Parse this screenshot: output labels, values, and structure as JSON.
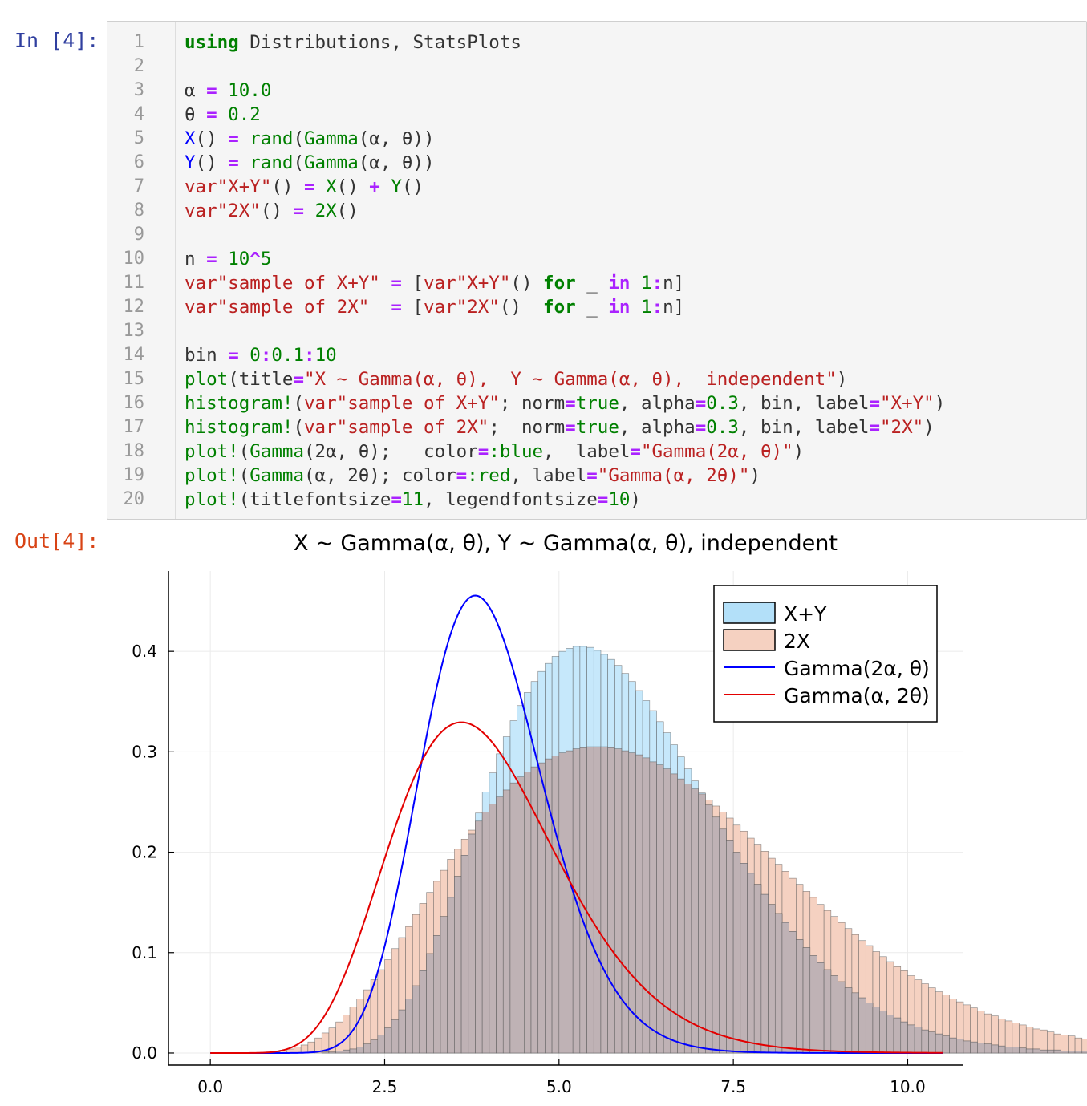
{
  "notebook": {
    "in_prompt": "In [4]:",
    "out_prompt": "Out[4]:"
  },
  "code_cell": {
    "line_numbers": [
      "1",
      "2",
      "3",
      "4",
      "5",
      "6",
      "7",
      "8",
      "9",
      "10",
      "11",
      "12",
      "13",
      "14",
      "15",
      "16",
      "17",
      "18",
      "19",
      "20"
    ],
    "lines": [
      [
        {
          "t": "using",
          "c": "kw"
        },
        {
          "t": " Distributions, StatsPlots",
          "c": ""
        }
      ],
      [],
      [
        {
          "t": "α ",
          "c": ""
        },
        {
          "t": "=",
          "c": "op"
        },
        {
          "t": " 10.0",
          "c": "num"
        }
      ],
      [
        {
          "t": "θ ",
          "c": ""
        },
        {
          "t": "=",
          "c": "op"
        },
        {
          "t": " 0.2",
          "c": "num"
        }
      ],
      [
        {
          "t": "X",
          "c": "blue"
        },
        {
          "t": "() ",
          "c": ""
        },
        {
          "t": "=",
          "c": "op"
        },
        {
          "t": " ",
          "c": ""
        },
        {
          "t": "rand",
          "c": "fn"
        },
        {
          "t": "(",
          "c": ""
        },
        {
          "t": "Gamma",
          "c": "fn"
        },
        {
          "t": "(α, θ))",
          "c": ""
        }
      ],
      [
        {
          "t": "Y",
          "c": "blue"
        },
        {
          "t": "() ",
          "c": ""
        },
        {
          "t": "=",
          "c": "op"
        },
        {
          "t": " ",
          "c": ""
        },
        {
          "t": "rand",
          "c": "fn"
        },
        {
          "t": "(",
          "c": ""
        },
        {
          "t": "Gamma",
          "c": "fn"
        },
        {
          "t": "(α, θ))",
          "c": ""
        }
      ],
      [
        {
          "t": "var\"X+Y\"",
          "c": "str"
        },
        {
          "t": "() ",
          "c": ""
        },
        {
          "t": "=",
          "c": "op"
        },
        {
          "t": " ",
          "c": ""
        },
        {
          "t": "X",
          "c": "fn"
        },
        {
          "t": "() ",
          "c": ""
        },
        {
          "t": "+",
          "c": "op"
        },
        {
          "t": " ",
          "c": ""
        },
        {
          "t": "Y",
          "c": "fn"
        },
        {
          "t": "()",
          "c": ""
        }
      ],
      [
        {
          "t": "var\"2X\"",
          "c": "str"
        },
        {
          "t": "() ",
          "c": ""
        },
        {
          "t": "=",
          "c": "op"
        },
        {
          "t": " ",
          "c": ""
        },
        {
          "t": "2X",
          "c": "num"
        },
        {
          "t": "()",
          "c": ""
        }
      ],
      [],
      [
        {
          "t": "n ",
          "c": ""
        },
        {
          "t": "=",
          "c": "op"
        },
        {
          "t": " ",
          "c": ""
        },
        {
          "t": "10",
          "c": "num"
        },
        {
          "t": "^",
          "c": "op"
        },
        {
          "t": "5",
          "c": "num"
        }
      ],
      [
        {
          "t": "var\"sample of X+Y\"",
          "c": "str"
        },
        {
          "t": " ",
          "c": ""
        },
        {
          "t": "=",
          "c": "op"
        },
        {
          "t": " [",
          "c": ""
        },
        {
          "t": "var\"X+Y\"",
          "c": "str"
        },
        {
          "t": "() ",
          "c": ""
        },
        {
          "t": "for",
          "c": "kw"
        },
        {
          "t": " _ ",
          "c": ""
        },
        {
          "t": "in",
          "c": "op"
        },
        {
          "t": " ",
          "c": ""
        },
        {
          "t": "1",
          "c": "num"
        },
        {
          "t": ":",
          "c": "op"
        },
        {
          "t": "n]",
          "c": ""
        }
      ],
      [
        {
          "t": "var\"sample of 2X\"",
          "c": "str"
        },
        {
          "t": "  ",
          "c": ""
        },
        {
          "t": "=",
          "c": "op"
        },
        {
          "t": " [",
          "c": ""
        },
        {
          "t": "var\"2X\"",
          "c": "str"
        },
        {
          "t": "()  ",
          "c": ""
        },
        {
          "t": "for",
          "c": "kw"
        },
        {
          "t": " _ ",
          "c": ""
        },
        {
          "t": "in",
          "c": "op"
        },
        {
          "t": " ",
          "c": ""
        },
        {
          "t": "1",
          "c": "num"
        },
        {
          "t": ":",
          "c": "op"
        },
        {
          "t": "n]",
          "c": ""
        }
      ],
      [],
      [
        {
          "t": "bin ",
          "c": ""
        },
        {
          "t": "=",
          "c": "op"
        },
        {
          "t": " ",
          "c": ""
        },
        {
          "t": "0",
          "c": "num"
        },
        {
          "t": ":",
          "c": "op"
        },
        {
          "t": "0.1",
          "c": "num"
        },
        {
          "t": ":",
          "c": "op"
        },
        {
          "t": "10",
          "c": "num"
        }
      ],
      [
        {
          "t": "plot",
          "c": "fn"
        },
        {
          "t": "(title",
          "c": ""
        },
        {
          "t": "=",
          "c": "op"
        },
        {
          "t": "\"X ~ Gamma(α, θ),  Y ~ Gamma(α, θ),  independent\"",
          "c": "str"
        },
        {
          "t": ")",
          "c": ""
        }
      ],
      [
        {
          "t": "histogram!",
          "c": "fn"
        },
        {
          "t": "(",
          "c": ""
        },
        {
          "t": "var\"sample of X+Y\"",
          "c": "str"
        },
        {
          "t": "; norm",
          "c": ""
        },
        {
          "t": "=",
          "c": "op"
        },
        {
          "t": "true",
          "c": "num"
        },
        {
          "t": ", alpha",
          "c": ""
        },
        {
          "t": "=",
          "c": "op"
        },
        {
          "t": "0.3",
          "c": "num"
        },
        {
          "t": ", bin, label",
          "c": ""
        },
        {
          "t": "=",
          "c": "op"
        },
        {
          "t": "\"X+Y\"",
          "c": "str"
        },
        {
          "t": ")",
          "c": ""
        }
      ],
      [
        {
          "t": "histogram!",
          "c": "fn"
        },
        {
          "t": "(",
          "c": ""
        },
        {
          "t": "var\"sample of 2X\"",
          "c": "str"
        },
        {
          "t": ";  norm",
          "c": ""
        },
        {
          "t": "=",
          "c": "op"
        },
        {
          "t": "true",
          "c": "num"
        },
        {
          "t": ", alpha",
          "c": ""
        },
        {
          "t": "=",
          "c": "op"
        },
        {
          "t": "0.3",
          "c": "num"
        },
        {
          "t": ", bin, label",
          "c": ""
        },
        {
          "t": "=",
          "c": "op"
        },
        {
          "t": "\"2X\"",
          "c": "str"
        },
        {
          "t": ")",
          "c": ""
        }
      ],
      [
        {
          "t": "plot!",
          "c": "fn"
        },
        {
          "t": "(",
          "c": ""
        },
        {
          "t": "Gamma",
          "c": "fn"
        },
        {
          "t": "(2α, θ);   color",
          "c": ""
        },
        {
          "t": "=",
          "c": "op"
        },
        {
          "t": ":blue",
          "c": "num"
        },
        {
          "t": ",  label",
          "c": ""
        },
        {
          "t": "=",
          "c": "op"
        },
        {
          "t": "\"Gamma(2α, θ)\"",
          "c": "str"
        },
        {
          "t": ")",
          "c": ""
        }
      ],
      [
        {
          "t": "plot!",
          "c": "fn"
        },
        {
          "t": "(",
          "c": ""
        },
        {
          "t": "Gamma",
          "c": "fn"
        },
        {
          "t": "(α, 2θ); color",
          "c": ""
        },
        {
          "t": "=",
          "c": "op"
        },
        {
          "t": ":red",
          "c": "num"
        },
        {
          "t": ", label",
          "c": ""
        },
        {
          "t": "=",
          "c": "op"
        },
        {
          "t": "\"Gamma(α, 2θ)\"",
          "c": "str"
        },
        {
          "t": ")",
          "c": ""
        }
      ],
      [
        {
          "t": "plot!",
          "c": "fn"
        },
        {
          "t": "(titlefontsize",
          "c": ""
        },
        {
          "t": "=",
          "c": "op"
        },
        {
          "t": "11",
          "c": "num"
        },
        {
          "t": ", legendfontsize",
          "c": ""
        },
        {
          "t": "=",
          "c": "op"
        },
        {
          "t": "10",
          "c": "num"
        },
        {
          "t": ")",
          "c": ""
        }
      ]
    ]
  },
  "colors": {
    "hist_xy_fill": "#b3e0f9",
    "hist_2x_fill": "#f5d1c1",
    "overlap_fill": "#bfb2b5",
    "bar_edge": "#555555",
    "gamma_2a_theta": "#0000ff",
    "gamma_a_2theta": "#e30000",
    "grid": "#ebebeb",
    "axis": "#000000"
  },
  "chart_data": {
    "type": "bar",
    "title": "X ~ Gamma(α, θ),  Y ~ Gamma(α, θ),  independent",
    "xlabel": "",
    "ylabel": "",
    "xlim": [
      -0.6,
      10.8
    ],
    "ylim": [
      -0.012,
      0.48
    ],
    "xticks": [
      0.0,
      2.5,
      5.0,
      7.5,
      10.0
    ],
    "xtick_labels": [
      "0.0",
      "2.5",
      "5.0",
      "7.5",
      "10.0"
    ],
    "yticks": [
      0.0,
      0.1,
      0.2,
      0.3,
      0.4
    ],
    "ytick_labels": [
      "0.0",
      "0.1",
      "0.2",
      "0.3",
      "0.4"
    ],
    "grid": true,
    "legend_position": "top-right",
    "bin_edges_start": 0,
    "bin_width": 0.1,
    "series": [
      {
        "name": "X+Y",
        "kind": "histogram",
        "color": "#b3e0f9",
        "values": [
          0,
          0,
          0,
          0,
          0,
          0,
          0,
          0,
          0,
          0,
          0,
          0,
          0,
          0,
          0,
          0,
          0.001,
          0.001,
          0.002,
          0.003,
          0.004,
          0.006,
          0.009,
          0.013,
          0.018,
          0.025,
          0.033,
          0.043,
          0.054,
          0.067,
          0.082,
          0.099,
          0.117,
          0.136,
          0.155,
          0.176,
          0.197,
          0.218,
          0.239,
          0.26,
          0.279,
          0.298,
          0.315,
          0.331,
          0.346,
          0.359,
          0.37,
          0.38,
          0.388,
          0.395,
          0.4,
          0.403,
          0.405,
          0.405,
          0.404,
          0.401,
          0.397,
          0.392,
          0.386,
          0.378,
          0.37,
          0.361,
          0.351,
          0.341,
          0.33,
          0.319,
          0.307,
          0.295,
          0.283,
          0.271,
          0.259,
          0.247,
          0.235,
          0.223,
          0.212,
          0.2,
          0.189,
          0.179,
          0.168,
          0.158,
          0.148,
          0.139,
          0.13,
          0.121,
          0.113,
          0.105,
          0.097,
          0.09,
          0.083,
          0.077,
          0.071,
          0.065,
          0.06,
          0.055,
          0.05,
          0.046,
          0.042,
          0.038,
          0.035,
          0.031,
          0.028,
          0.026,
          0.023,
          0.021,
          0.019,
          0.017,
          0.015,
          0.014,
          0.012,
          0.011,
          0.01,
          0.009,
          0.008,
          0.007,
          0.006,
          0.006,
          0.005,
          0.004,
          0.004,
          0.003,
          0.003,
          0.003,
          0.002,
          0.002,
          0.002,
          0.002,
          0.001,
          0.001,
          0.001,
          0.001,
          0.001,
          0.001,
          0.001,
          0,
          0,
          0,
          0,
          0,
          0,
          0,
          0,
          0,
          0,
          0,
          0,
          0
        ],
        "values_note": ""
      },
      {
        "name": "2X",
        "kind": "histogram",
        "color": "#f5d1c1",
        "values": [
          0,
          0,
          0,
          0,
          0,
          0,
          0,
          0,
          0.001,
          0.001,
          0.002,
          0.004,
          0.006,
          0.008,
          0.011,
          0.015,
          0.02,
          0.025,
          0.031,
          0.038,
          0.046,
          0.054,
          0.063,
          0.073,
          0.083,
          0.093,
          0.104,
          0.115,
          0.126,
          0.138,
          0.149,
          0.16,
          0.171,
          0.182,
          0.193,
          0.203,
          0.213,
          0.222,
          0.231,
          0.24,
          0.248,
          0.255,
          0.262,
          0.269,
          0.275,
          0.28,
          0.285,
          0.289,
          0.293,
          0.296,
          0.299,
          0.301,
          0.303,
          0.304,
          0.305,
          0.305,
          0.305,
          0.304,
          0.303,
          0.301,
          0.299,
          0.297,
          0.294,
          0.29,
          0.287,
          0.283,
          0.278,
          0.273,
          0.268,
          0.263,
          0.258,
          0.252,
          0.246,
          0.24,
          0.234,
          0.227,
          0.221,
          0.214,
          0.208,
          0.201,
          0.194,
          0.188,
          0.181,
          0.174,
          0.168,
          0.161,
          0.155,
          0.148,
          0.142,
          0.136,
          0.13,
          0.124,
          0.118,
          0.112,
          0.107,
          0.101,
          0.096,
          0.091,
          0.086,
          0.082,
          0.077,
          0.073,
          0.069,
          0.065,
          0.061,
          0.058,
          0.054,
          0.051,
          0.048,
          0.045,
          0.042,
          0.039,
          0.037,
          0.034,
          0.032,
          0.03,
          0.028,
          0.026,
          0.024,
          0.023,
          0.021,
          0.019,
          0.018,
          0.017,
          0.015,
          0.014,
          0.013,
          0.012,
          0.011,
          0.01,
          0.009,
          0.009,
          0.008,
          0.007,
          0.007,
          0.006,
          0.006,
          0.005,
          0.005,
          0.004,
          0.004,
          0.004,
          0.003,
          0.003,
          0.003,
          0.003,
          0.002,
          0.002,
          0.002,
          0.002
        ],
        "values_note": ""
      },
      {
        "name": "Gamma(2α, θ)",
        "kind": "line",
        "color": "#0000ff",
        "shape": 20,
        "scale": 0.2
      },
      {
        "name": "Gamma(α, 2θ)",
        "kind": "line",
        "color": "#e30000",
        "shape": 10,
        "scale": 0.4
      }
    ],
    "curve_x_range": [
      0.0,
      10.5
    ]
  }
}
